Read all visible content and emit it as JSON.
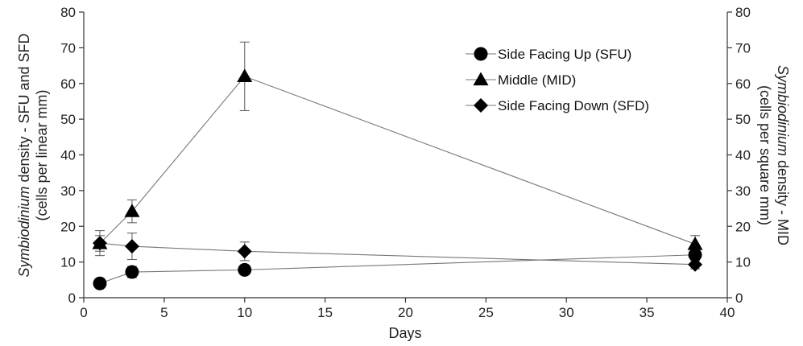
{
  "chart_data": {
    "type": "line",
    "xlabel": "Days",
    "ylabel_left": {
      "italic": "Symbiodinium",
      "rest": " density - SFU and SFD",
      "line2": "(cells per linear mm)"
    },
    "ylabel_right": {
      "italic": "Symbiodinium",
      "rest": " density - MID",
      "line2": "(cells per square mm)"
    },
    "xlim": [
      0,
      40
    ],
    "ylim": [
      0,
      80
    ],
    "x_ticks": [
      0,
      5,
      10,
      15,
      20,
      25,
      30,
      35,
      40
    ],
    "y_ticks": [
      0,
      10,
      20,
      30,
      40,
      50,
      60,
      70,
      80
    ],
    "grid": false,
    "legend_position": "top-right",
    "series": [
      {
        "name": "Side Facing Up (SFU)",
        "marker": "circle",
        "axis": "left",
        "x": [
          1,
          3,
          10,
          38
        ],
        "y": [
          4,
          7.2,
          7.8,
          12
        ],
        "err": [
          0.6,
          1.6,
          1.2,
          1.5
        ]
      },
      {
        "name": "Middle (MID)",
        "marker": "triangle",
        "axis": "right",
        "x": [
          1,
          3,
          10,
          38
        ],
        "y": [
          15.2,
          24.2,
          62,
          15
        ],
        "err": [
          2.2,
          3.2,
          9.6,
          2.4
        ]
      },
      {
        "name": "Side Facing Down (SFD)",
        "marker": "diamond",
        "axis": "left",
        "x": [
          1,
          3,
          10,
          38
        ],
        "y": [
          15.3,
          14.4,
          13,
          9.3
        ],
        "err": [
          3.5,
          3.7,
          2.6,
          1.2
        ]
      }
    ]
  }
}
